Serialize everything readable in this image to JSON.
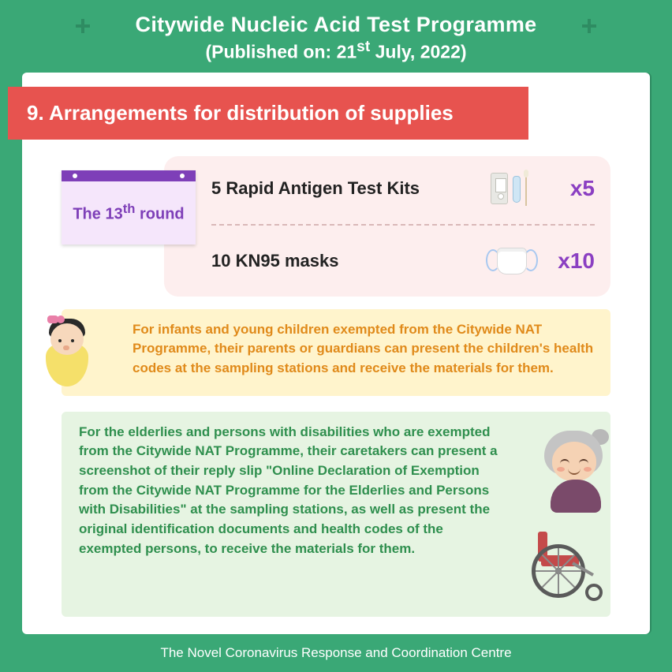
{
  "header": {
    "title": "Citywide Nucleic Acid Test Programme",
    "published_prefix": "(Published on: ",
    "published_day": "21",
    "published_ord": "st",
    "published_rest": " July, 2022)"
  },
  "section": {
    "number": "9.",
    "title": "Arrangements for distribution of supplies"
  },
  "round_badge": {
    "prefix": "The ",
    "number": "13",
    "ord": "th",
    "suffix": " round"
  },
  "supplies": {
    "item1": {
      "label": "5 Rapid Antigen Test Kits",
      "qty": "x5"
    },
    "item2": {
      "label": "10 KN95 masks",
      "qty": "x10"
    }
  },
  "notes": {
    "infants": "For infants and young children exempted from the Citywide NAT Programme, their parents or guardians can present the children's health codes at the sampling stations and receive the materials for them.",
    "elderly": "For the elderlies and persons with disabilities who are exempted from the Citywide NAT Programme, their caretakers can present a screenshot of their reply slip \"Online Declaration of Exemption from the Citywide NAT Programme for the Elderlies and Persons with Disabilities\" at the sampling stations, as well as present the original identification documents and health codes of the exempted persons, to receive the materials for them."
  },
  "footer": "The Novel Coronavirus Response and Coordination Centre",
  "colors": {
    "page_bg": "#3aa876",
    "banner_bg": "#e7534f",
    "banner_text": "#ffffff",
    "round_border": "#7e3fb8",
    "round_bg": "#f5e6fb",
    "round_text": "#7e3fb8",
    "supplies_bg": "#fdeeee",
    "qty_text": "#8b3fc2",
    "note_yellow_bg": "#fff4cc",
    "note_yellow_text": "#e08a1a",
    "note_green_bg": "#e6f4e2",
    "note_green_text": "#2f8f4e"
  },
  "fonts": {
    "header_title_pt": 27,
    "header_sub_pt": 23,
    "section_title_pt": 26,
    "supply_label_pt": 22,
    "supply_qty_pt": 28,
    "note_pt": 17,
    "footer_pt": 17
  }
}
